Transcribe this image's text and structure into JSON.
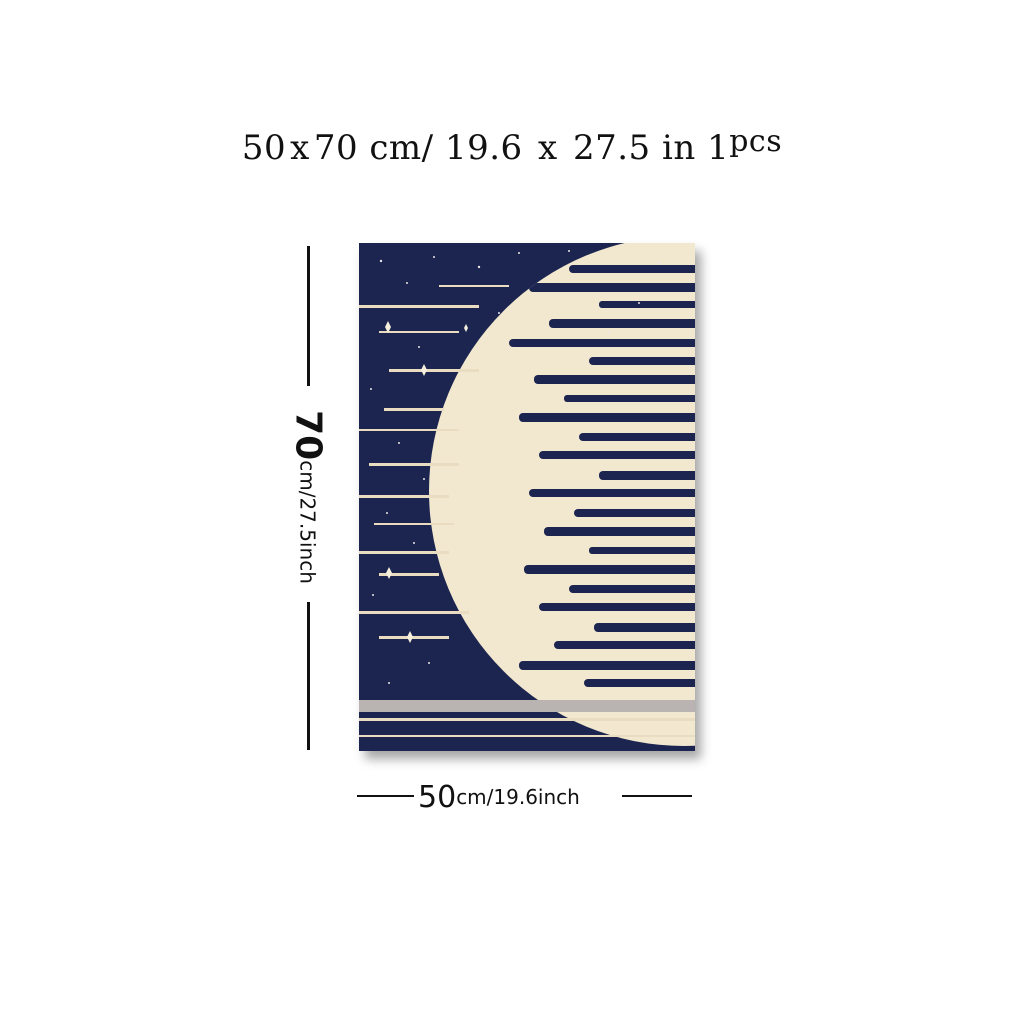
{
  "headline": {
    "width": "50",
    "x1": "x",
    "height": "70",
    "unit1": "cm/",
    "width_in": "19.6",
    "x2": "x",
    "height_in": "27.5",
    "unit2": "in",
    "qty": "1",
    "qty_unit": "pcs"
  },
  "height_label": {
    "value": "70",
    "unit": "cm/27.5inch"
  },
  "width_label": {
    "value": "50",
    "unit": "cm/19.6inch"
  },
  "colors": {
    "sky": "#1c2550",
    "cream": "#f2e8cf",
    "text": "#111111"
  }
}
